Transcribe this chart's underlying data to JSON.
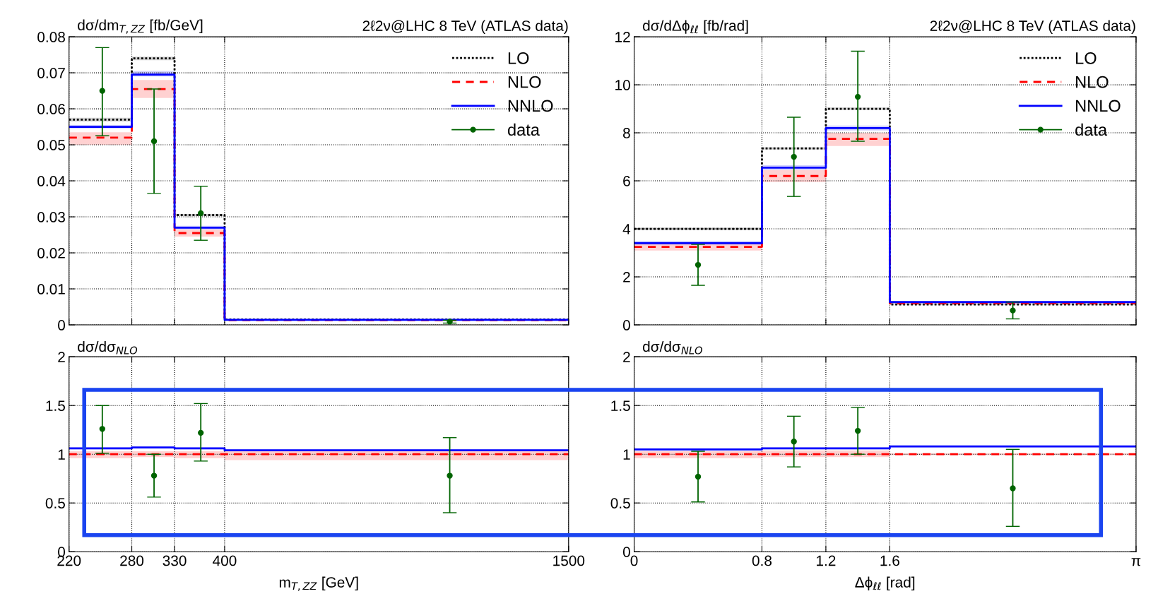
{
  "chart_data": [
    {
      "type": "step",
      "title": "2ℓ2ν@LHC 8 TeV (ATLAS data)",
      "ylabel": "dσ/dm$_{T,ZZ}$ [fb/GeV]",
      "log": "x",
      "xlim": [
        220,
        1500
      ],
      "xticks": [
        220,
        280,
        330,
        400,
        1500
      ],
      "ylim": [
        0,
        0.08
      ],
      "yticks": [
        0,
        0.01,
        0.02,
        0.03,
        0.04,
        0.05,
        0.06,
        0.07,
        0.08
      ],
      "grid": true,
      "legend": "top right",
      "tick_labels": "y",
      "series": [
        {
          "name": "LO",
          "color": "#000000",
          "line_style": "dotted",
          "x": [
            220,
            280,
            330,
            400,
            1500
          ],
          "values": [
            0.057,
            0.074,
            0.0305,
            0.0015,
            0.0015
          ],
          "lower": [
            0.0565,
            0.0735,
            0.0302,
            0.0014,
            0.0014
          ],
          "upper": [
            0.0575,
            0.0745,
            0.0308,
            0.0016,
            0.0016
          ]
        },
        {
          "name": "NLO",
          "color": "#ff0000",
          "line_style": "dashed",
          "x": [
            220,
            280,
            330,
            400,
            1500
          ],
          "values": [
            0.052,
            0.0655,
            0.0255,
            0.0013,
            0.0013
          ],
          "lower": [
            0.05,
            0.063,
            0.0245,
            0.0012,
            0.0012
          ],
          "upper": [
            0.0535,
            0.068,
            0.0265,
            0.0014,
            0.0014
          ]
        },
        {
          "name": "NNLO",
          "color": "#0000ff",
          "line_style": "solid",
          "x": [
            220,
            280,
            330,
            400,
            1500
          ],
          "values": [
            0.055,
            0.0695,
            0.027,
            0.0014,
            0.0014
          ],
          "lower": [
            0.0545,
            0.069,
            0.0265,
            0.0013,
            0.0013
          ],
          "upper": [
            0.0555,
            0.0705,
            0.0275,
            0.0015,
            0.0015
          ]
        },
        {
          "name": "data",
          "type": "scatter",
          "marker": "circle",
          "color": "#006400",
          "x": [
            250,
            305,
            365,
            950
          ],
          "values": [
            0.065,
            0.051,
            0.031,
            0.0009
          ],
          "errors": [
            [
              0.0525,
              0.077
            ],
            [
              0.0365,
              0.0655
            ],
            [
              0.0235,
              0.0385
            ],
            [
              0.0005,
              0.0013
            ]
          ]
        }
      ]
    },
    {
      "type": "step",
      "title": "2ℓ2ν@LHC 8 TeV (ATLAS data)",
      "ylabel": "dσ/dΔϕ$_{ℓℓ}$ [fb/rad]",
      "xlim": [
        0,
        3.1416
      ],
      "xticks": [
        0,
        0.8,
        1.2,
        1.6,
        3.1416
      ],
      "ylim": [
        0,
        12
      ],
      "yticks": [
        0,
        2,
        4,
        6,
        8,
        10,
        12
      ],
      "grid": true,
      "legend": "top right",
      "tick_labels": "y",
      "series": [
        {
          "name": "LO",
          "color": "#000000",
          "line_style": "dotted",
          "x": [
            0,
            0.8,
            1.2,
            1.6,
            3.1416
          ],
          "values": [
            4.0,
            7.35,
            9.0,
            0.85,
            0.85
          ],
          "lower": [
            3.95,
            7.3,
            8.95,
            0.83,
            0.83
          ],
          "upper": [
            4.05,
            7.4,
            9.05,
            0.87,
            0.87
          ]
        },
        {
          "name": "NLO",
          "color": "#ff0000",
          "line_style": "dashed",
          "x": [
            0,
            0.8,
            1.2,
            1.6,
            3.1416
          ],
          "values": [
            3.25,
            6.2,
            7.75,
            0.9,
            0.9
          ],
          "lower": [
            3.1,
            5.95,
            7.45,
            0.88,
            0.88
          ],
          "upper": [
            3.4,
            6.45,
            8.0,
            0.92,
            0.92
          ]
        },
        {
          "name": "NNLO",
          "color": "#0000ff",
          "line_style": "solid",
          "x": [
            0,
            0.8,
            1.2,
            1.6,
            3.1416
          ],
          "values": [
            3.4,
            6.55,
            8.2,
            0.95,
            0.95
          ],
          "lower": [
            3.35,
            6.45,
            8.1,
            0.93,
            0.93
          ],
          "upper": [
            3.5,
            6.65,
            8.3,
            0.97,
            0.97
          ]
        },
        {
          "name": "data",
          "type": "scatter",
          "marker": "circle",
          "color": "#006400",
          "x": [
            0.4,
            1.0,
            1.4,
            2.37
          ],
          "values": [
            2.5,
            7.0,
            9.5,
            0.6
          ],
          "errors": [
            [
              1.65,
              3.35
            ],
            [
              5.35,
              8.65
            ],
            [
              7.65,
              11.4
            ],
            [
              0.25,
              0.95
            ]
          ]
        }
      ]
    },
    {
      "type": "step",
      "ylabel": "dσ/dσ$_{NLO}$",
      "xlabel": "m$_{T,ZZ}$ [GeV]",
      "log": "x",
      "xlim": [
        220,
        1500
      ],
      "xticks": [
        220,
        280,
        330,
        400,
        1500
      ],
      "ylim": [
        0,
        2
      ],
      "yticks": [
        0,
        0.5,
        1,
        1.5,
        2
      ],
      "grid": true,
      "series": [
        {
          "color": "#ff0000",
          "line_style": "dashed",
          "x": [
            220,
            280,
            330,
            400,
            1500
          ],
          "values": [
            1,
            1,
            1,
            1,
            1
          ],
          "lower": [
            0.96,
            0.97,
            0.96,
            0.94,
            0.94
          ],
          "upper": [
            1.03,
            1.03,
            1.03,
            1.04,
            1.04
          ]
        },
        {
          "color": "#0000ff",
          "line_style": "solid",
          "x": [
            220,
            280,
            330,
            400,
            1500
          ],
          "values": [
            1.06,
            1.07,
            1.06,
            1.04,
            1.04
          ],
          "lower": [
            1.05,
            1.06,
            1.05,
            1.03,
            1.03
          ],
          "upper": [
            1.07,
            1.08,
            1.07,
            1.05,
            1.05
          ]
        },
        {
          "type": "scatter",
          "marker": "circle",
          "color": "#006400",
          "x": [
            250,
            305,
            365,
            950
          ],
          "values": [
            1.26,
            0.78,
            1.22,
            0.78
          ],
          "errors": [
            [
              1.01,
              1.5
            ],
            [
              0.56,
              1.0
            ],
            [
              0.93,
              1.52
            ],
            [
              0.4,
              1.17
            ]
          ]
        }
      ]
    },
    {
      "type": "step",
      "ylabel": "dσ/dσ$_{NLO}$",
      "xlabel": "Δϕ$_{ℓℓ}$ [rad]",
      "xlim": [
        0,
        3.1416
      ],
      "xticks": [
        0,
        0.8,
        1.2,
        1.6,
        {
          "value": 3.1416,
          "label": "π"
        }
      ],
      "ylim": [
        0,
        2
      ],
      "yticks": [
        0,
        0.5,
        1,
        1.5,
        2
      ],
      "grid": true,
      "series": [
        {
          "color": "#ff0000",
          "line_style": "dashed",
          "x": [
            0,
            0.8,
            1.2,
            1.6,
            3.1416
          ],
          "values": [
            1,
            1,
            1,
            1,
            1
          ],
          "lower": [
            0.96,
            0.97,
            0.97,
            0.99,
            0.99
          ],
          "upper": [
            1.03,
            1.04,
            1.04,
            1.01,
            1.01
          ]
        },
        {
          "color": "#0000ff",
          "line_style": "solid",
          "x": [
            0,
            0.8,
            1.2,
            1.6,
            3.1416
          ],
          "values": [
            1.05,
            1.06,
            1.06,
            1.08,
            1.08
          ],
          "lower": [
            1.04,
            1.05,
            1.05,
            1.07,
            1.07
          ],
          "upper": [
            1.06,
            1.07,
            1.07,
            1.09,
            1.09
          ]
        },
        {
          "type": "scatter",
          "marker": "circle",
          "color": "#006400",
          "x": [
            0.4,
            1.0,
            1.4,
            2.37
          ],
          "values": [
            0.77,
            1.13,
            1.24,
            0.65
          ],
          "errors": [
            [
              0.51,
              1.03
            ],
            [
              0.87,
              1.39
            ],
            [
              1.0,
              1.48
            ],
            [
              0.26,
              1.05
            ]
          ]
        }
      ]
    }
  ]
}
